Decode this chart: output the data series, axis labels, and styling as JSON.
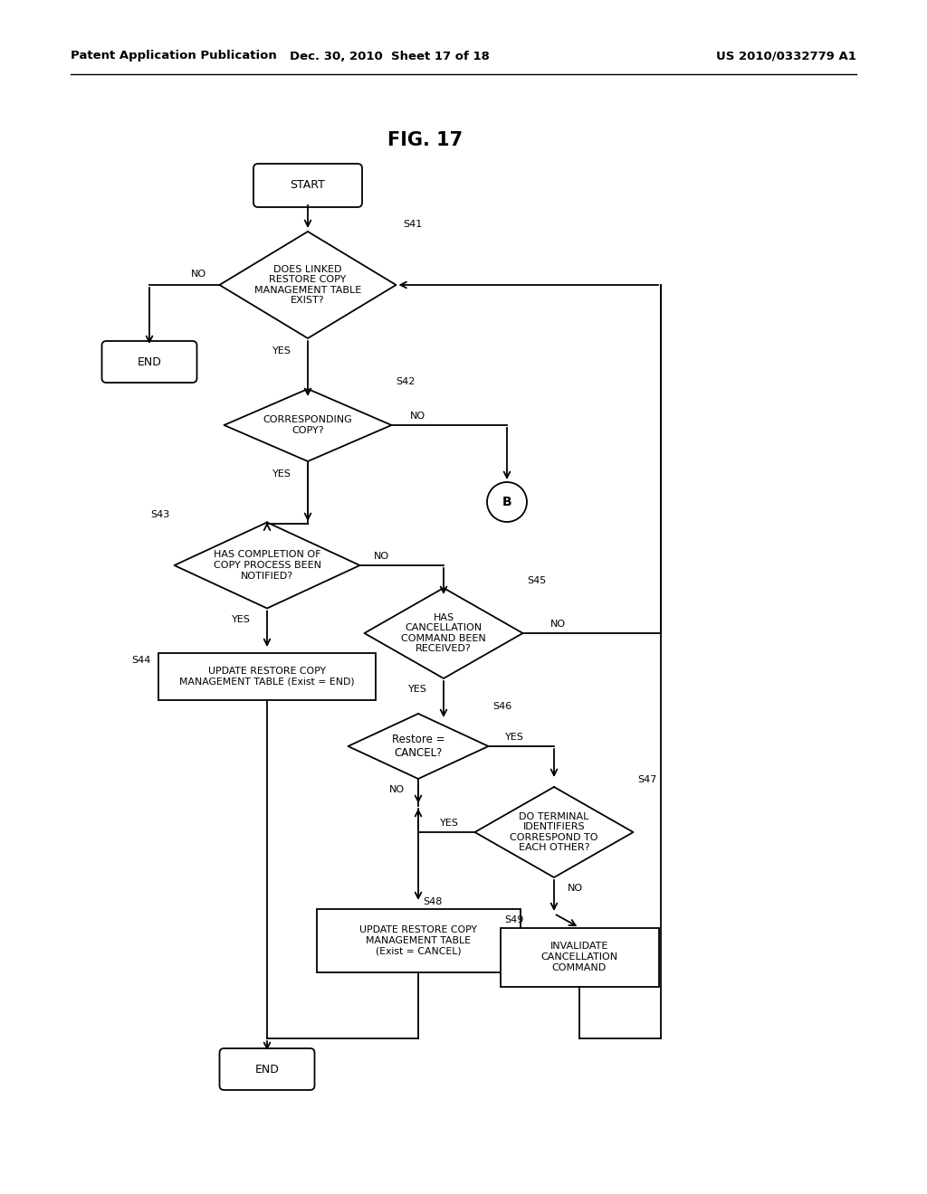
{
  "title": "FIG. 17",
  "header_left": "Patent Application Publication",
  "header_mid": "Dec. 30, 2010  Sheet 17 of 18",
  "header_right": "US 2010/0332779 A1",
  "bg_color": "#ffffff",
  "line_color": "#000000",
  "text_color": "#000000"
}
